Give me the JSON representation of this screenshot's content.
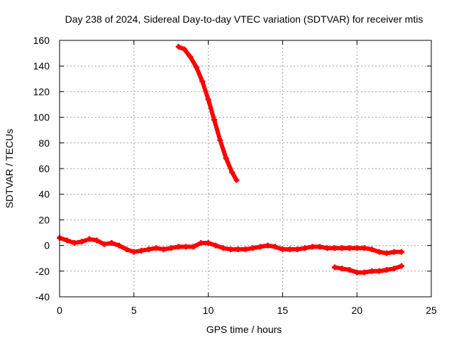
{
  "chart_data": {
    "type": "scatter",
    "title": "Day 238 of 2024, Sidereal Day-to-day VTEC variation (SDTVAR) for receiver mtis",
    "xlabel": "GPS time / hours",
    "ylabel": "SDTVAR / TECUs",
    "xlim": [
      0,
      25
    ],
    "ylim": [
      -40,
      160
    ],
    "grid": true,
    "marker_color": "#ff0000",
    "xticks": [
      0,
      5,
      10,
      15,
      20,
      25
    ],
    "yticks": [
      -40,
      -20,
      0,
      20,
      40,
      60,
      80,
      100,
      120,
      140,
      160
    ],
    "series": [
      {
        "name": "main-track",
        "x": [
          0,
          0.5,
          1,
          1.5,
          2,
          2.5,
          3,
          3.5,
          4,
          4.5,
          5,
          5.5,
          6,
          6.5,
          7,
          7.5,
          8,
          8.5,
          9,
          9.5,
          10,
          10.5,
          11,
          11.5,
          12,
          12.5,
          13,
          13.5,
          14,
          14.5,
          15,
          15.5,
          16,
          16.5,
          17,
          17.5,
          18,
          18.5,
          19,
          19.5,
          20,
          20.5,
          21,
          21.5,
          22,
          22.5,
          23
        ],
        "y": [
          6,
          4,
          2,
          3,
          5,
          4,
          1,
          2,
          0,
          -3,
          -5,
          -4,
          -3,
          -2,
          -3,
          -2,
          -1,
          -1,
          -1,
          2,
          2,
          0,
          -2,
          -3,
          -3,
          -3,
          -2,
          -1,
          0,
          -1,
          -3,
          -3,
          -3,
          -2,
          -1,
          -1,
          -2,
          -2,
          -2,
          -2,
          -2,
          -2,
          -3,
          -5,
          -6,
          -5,
          -5
        ]
      },
      {
        "name": "descending-arc",
        "x": [
          8,
          8.4,
          8.8,
          9.2,
          9.6,
          10,
          10.4,
          10.8,
          11.2,
          11.6,
          11.9
        ],
        "y": [
          155,
          153,
          147,
          139,
          128,
          114,
          98,
          82,
          68,
          57,
          51
        ]
      },
      {
        "name": "low-track",
        "x": [
          18.5,
          19,
          19.5,
          20,
          20.5,
          21,
          21.5,
          22,
          22.5,
          23
        ],
        "y": [
          -17,
          -18,
          -19,
          -21,
          -21,
          -20,
          -20,
          -19,
          -18,
          -16
        ]
      }
    ]
  }
}
